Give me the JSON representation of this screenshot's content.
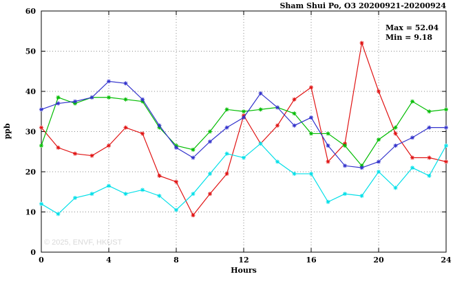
{
  "title": "Sham Shui Po, O3 20200921-20200924",
  "annotation": {
    "max_label": "Max = 52.04",
    "min_label": "Min =  9.18"
  },
  "watermark": "© 2025, ENVF, HKUST",
  "chart_data": {
    "type": "line",
    "title": "Sham Shui Po, O3 20200921-20200924",
    "xlabel": "Hours",
    "ylabel": "ppb",
    "xlim": [
      0,
      24
    ],
    "ylim": [
      0,
      60
    ],
    "xticks": [
      0,
      4,
      8,
      12,
      16,
      20,
      24
    ],
    "yticks": [
      0,
      10,
      20,
      30,
      40,
      50,
      60
    ],
    "grid": true,
    "legend_position": "none",
    "stats": {
      "max": 52.04,
      "min": 9.18
    },
    "x": [
      0,
      1,
      2,
      3,
      4,
      5,
      6,
      7,
      8,
      9,
      10,
      11,
      12,
      13,
      14,
      15,
      16,
      17,
      18,
      19,
      20,
      21,
      22,
      23,
      24
    ],
    "series": [
      {
        "name": "red",
        "color": "#e01212",
        "values": [
          31,
          26,
          24.5,
          24,
          26.5,
          31,
          29.5,
          19,
          17.5,
          9.18,
          14.5,
          19.5,
          34,
          27,
          31.5,
          38,
          41,
          22.5,
          27,
          52.04,
          40,
          29.5,
          23.5,
          23.5,
          22.5
        ]
      },
      {
        "name": "green",
        "color": "#00bc00",
        "values": [
          26.5,
          38.5,
          37,
          38.5,
          38.5,
          38,
          37.5,
          31,
          26.5,
          25.5,
          30,
          35.5,
          35,
          35.5,
          36,
          34.5,
          29.5,
          29.5,
          26.5,
          21.5,
          28,
          31,
          37.5,
          35,
          35.5
        ]
      },
      {
        "name": "blue",
        "color": "#3232cc",
        "values": [
          35.5,
          37,
          37.5,
          38.5,
          42.5,
          42,
          38,
          31.5,
          26,
          23.5,
          27.5,
          31,
          33.5,
          39.5,
          36,
          31.5,
          33.5,
          26.5,
          21.5,
          21,
          22.5,
          26.5,
          28.5,
          31,
          31
        ]
      },
      {
        "name": "cyan",
        "color": "#00dfe8",
        "values": [
          12,
          9.5,
          13.5,
          14.5,
          16.5,
          14.5,
          15.5,
          14,
          10.5,
          14.5,
          19.5,
          24.5,
          23.5,
          27,
          22.5,
          19.5,
          19.5,
          12.5,
          14.5,
          14,
          20,
          16,
          21,
          19,
          26.5
        ]
      }
    ]
  }
}
